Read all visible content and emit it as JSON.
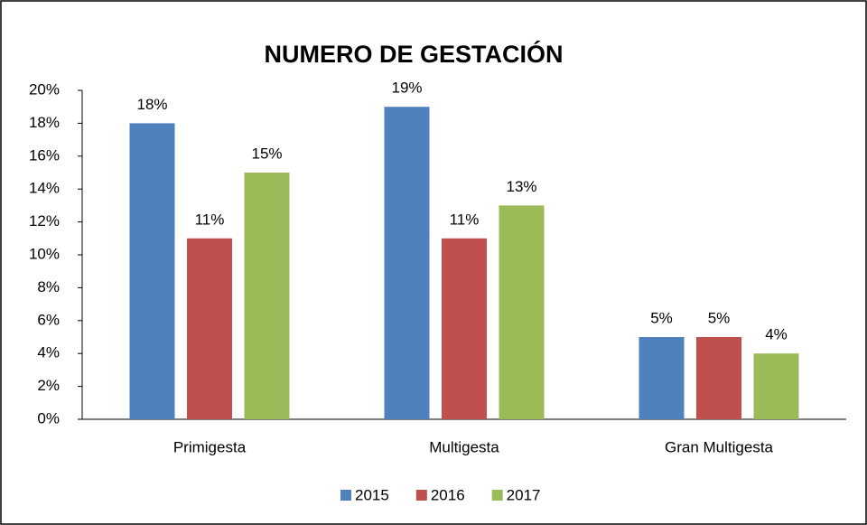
{
  "chart_data": {
    "type": "bar",
    "title": "NUMERO DE GESTACIÓN",
    "categories": [
      "Primigesta",
      "Multigesta",
      "Gran Multigesta"
    ],
    "series": [
      {
        "name": "2015",
        "color": "#4f81bd",
        "values": [
          18,
          19,
          5
        ],
        "value_labels": [
          "18%",
          "19%",
          "5%"
        ]
      },
      {
        "name": "2016",
        "color": "#c0504d",
        "values": [
          11,
          11,
          5
        ],
        "value_labels": [
          "11%",
          "11%",
          "5%"
        ]
      },
      {
        "name": "2017",
        "color": "#9bbb59",
        "values": [
          15,
          13,
          4
        ],
        "value_labels": [
          "15%",
          "13%",
          "4%"
        ]
      }
    ],
    "ylim": [
      0,
      20
    ],
    "yticks": [
      {
        "value": 0,
        "label": "0%"
      },
      {
        "value": 2,
        "label": "2%"
      },
      {
        "value": 4,
        "label": "4%"
      },
      {
        "value": 6,
        "label": "6%"
      },
      {
        "value": 8,
        "label": "8%"
      },
      {
        "value": 10,
        "label": "10%"
      },
      {
        "value": 12,
        "label": "12%"
      },
      {
        "value": 14,
        "label": "14%"
      },
      {
        "value": 16,
        "label": "16%"
      },
      {
        "value": 18,
        "label": "18%"
      },
      {
        "value": 20,
        "label": "20%"
      }
    ],
    "grid": false,
    "legend": "bottom"
  }
}
